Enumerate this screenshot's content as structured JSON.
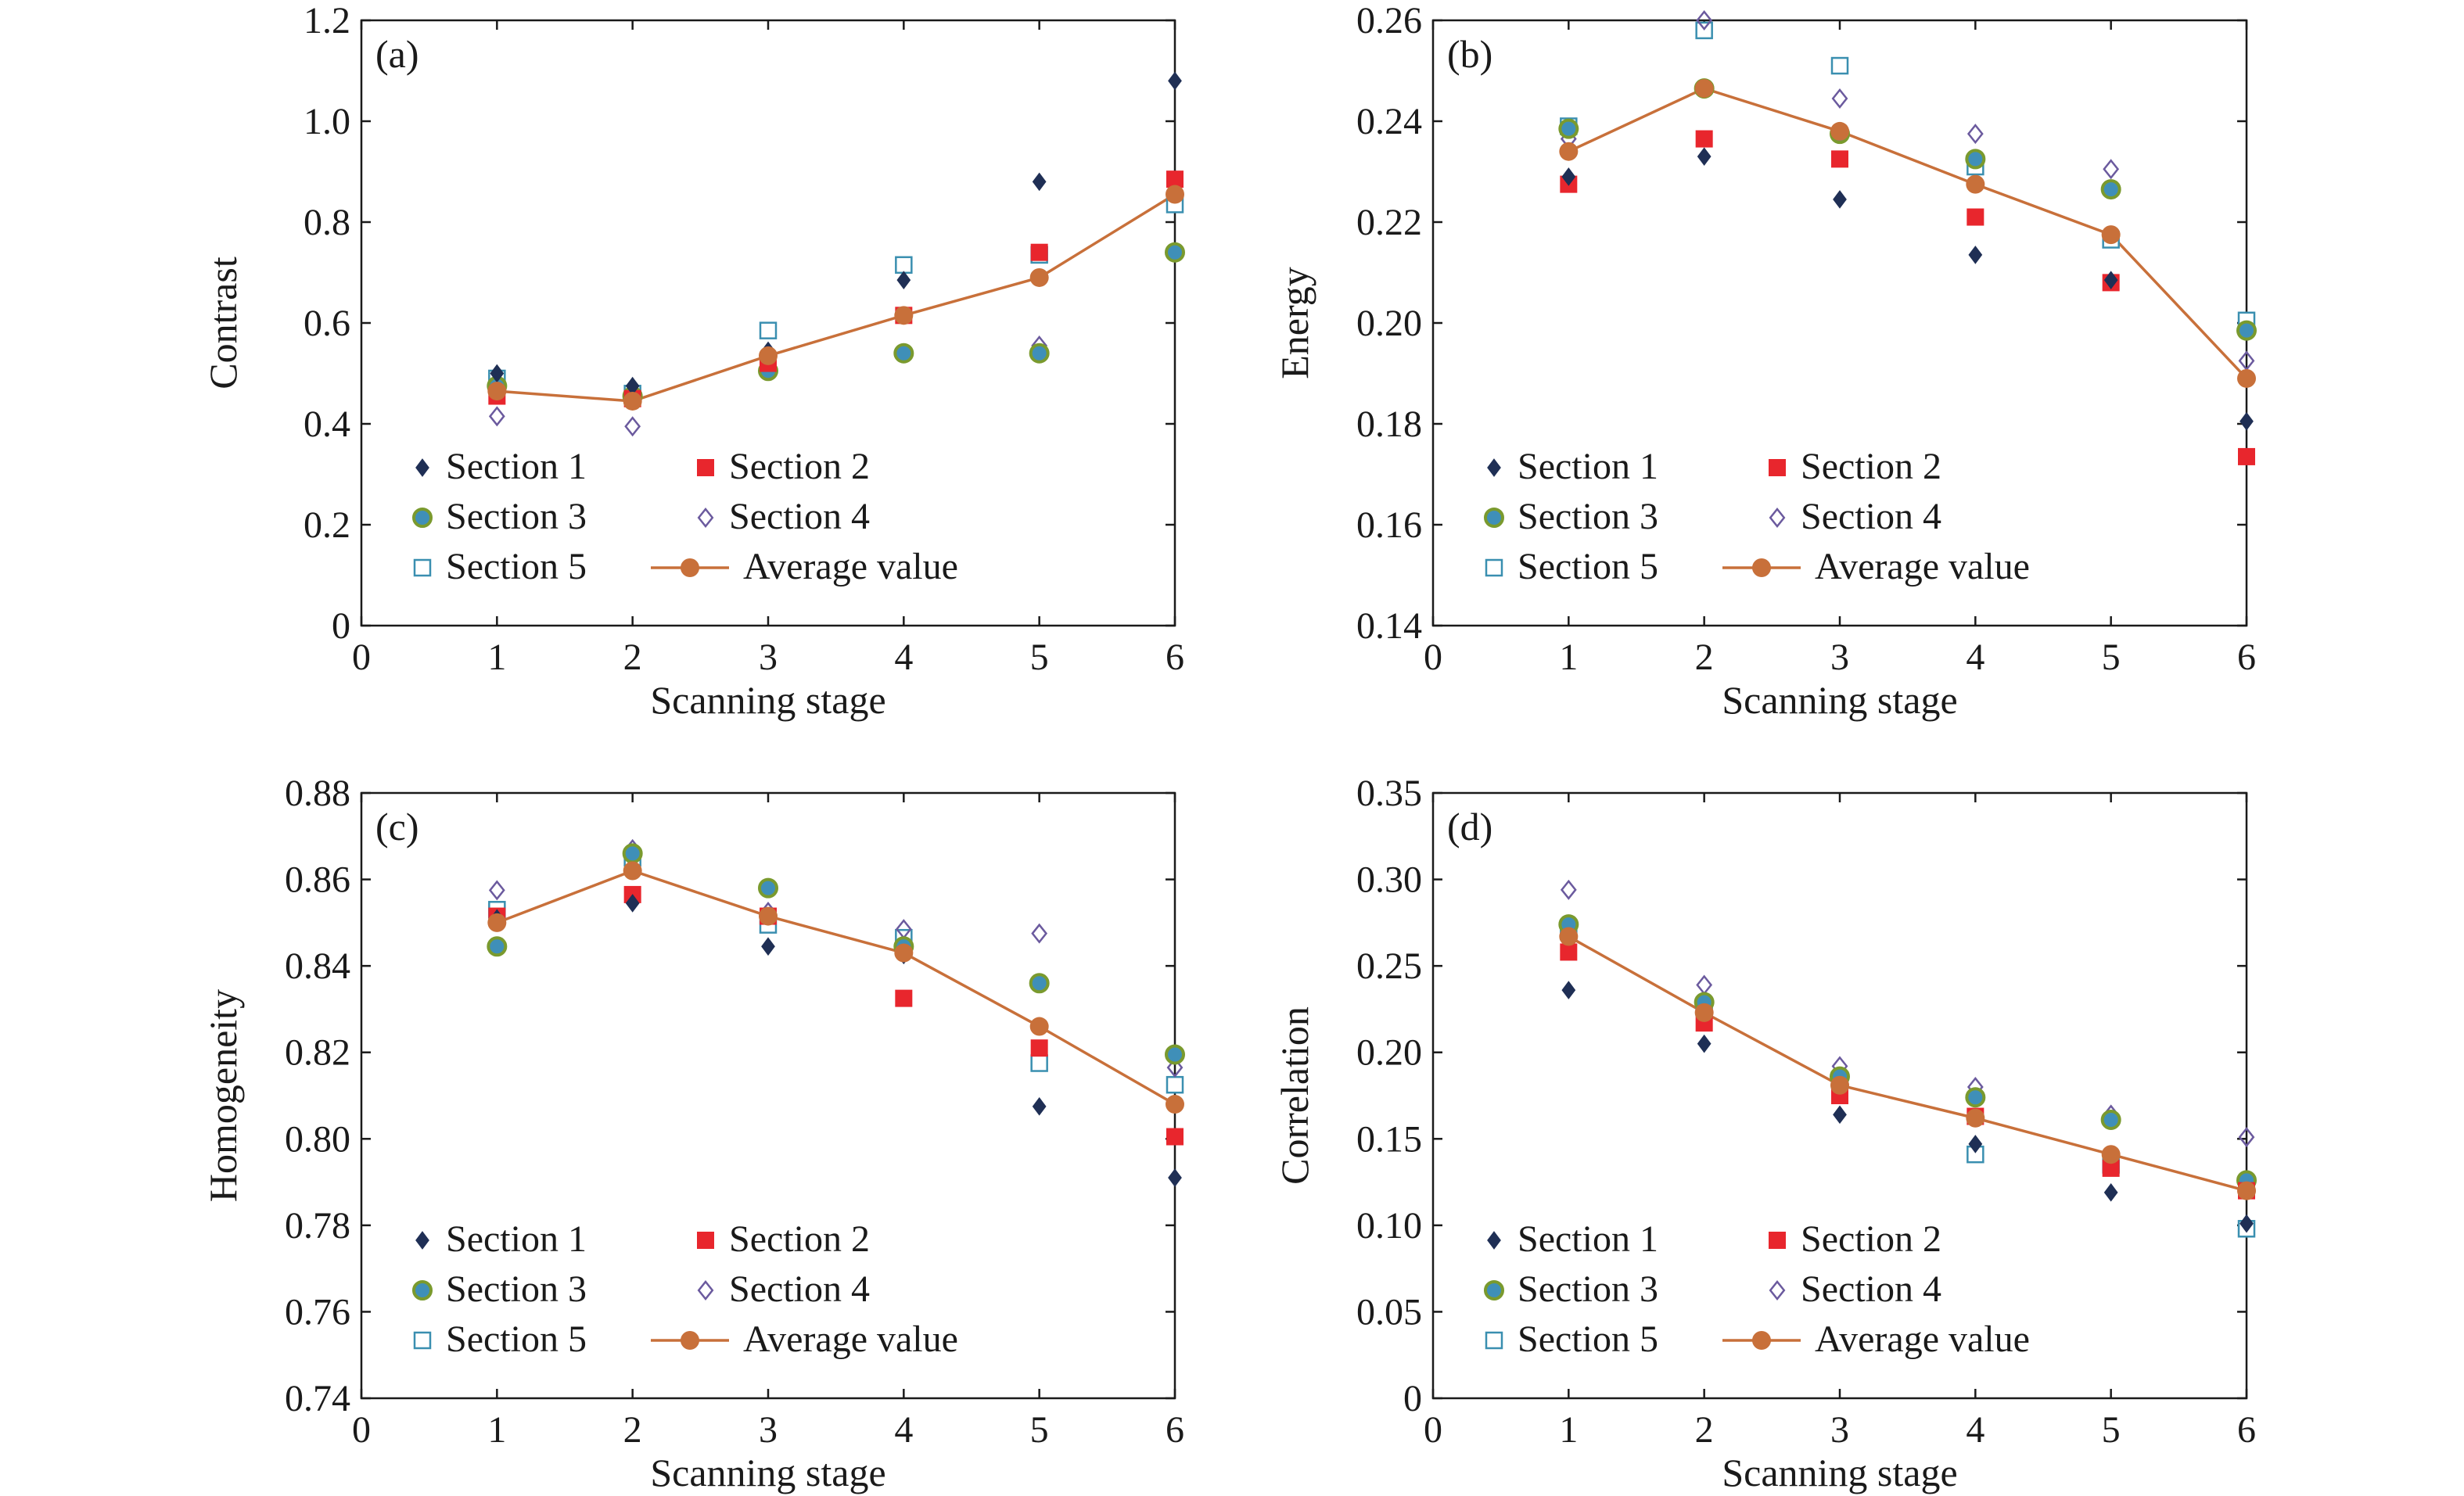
{
  "colors": {
    "section1": "#1f2f55",
    "section2": "#e8262d",
    "section3_fill": "#3f8fb8",
    "section3_edge": "#7a9a2e",
    "section4": "#6b5a9e",
    "section5": "#3a8fb0",
    "average": "#c8703a",
    "axis": "#1a1a1a"
  },
  "legend": {
    "section1": "Section 1",
    "section2": "Section 2",
    "section3": "Section 3",
    "section4": "Section 4",
    "section5": "Section 5",
    "average": "Average value"
  },
  "chart_data": [
    {
      "type": "scatter",
      "panel_label": "(a)",
      "xlabel": "Scanning stage",
      "ylabel": "Contrast",
      "xlim": [
        0,
        6
      ],
      "ylim": [
        0,
        1.2
      ],
      "xticks": [
        0,
        1,
        2,
        3,
        4,
        5,
        6
      ],
      "yticks": [
        0,
        0.2,
        0.4,
        0.6,
        0.8,
        1.0,
        1.2
      ],
      "ytick_labels": [
        "0",
        "0.2",
        "0.4",
        "0.6",
        "0.8",
        "1.0",
        "1.2"
      ],
      "legend_placement": "bottom-left",
      "x": [
        1,
        2,
        3,
        4,
        5,
        6
      ],
      "series": [
        {
          "name": "Section 1",
          "values": [
            0.5,
            0.475,
            0.545,
            0.685,
            0.88,
            1.08
          ]
        },
        {
          "name": "Section 2",
          "values": [
            0.455,
            0.45,
            0.52,
            0.615,
            0.74,
            0.885
          ]
        },
        {
          "name": "Section 3",
          "values": [
            0.475,
            0.455,
            0.505,
            0.54,
            0.54,
            0.74
          ]
        },
        {
          "name": "Section 4",
          "values": [
            0.415,
            0.395,
            0.53,
            0.54,
            0.555,
            0.74
          ]
        },
        {
          "name": "Section 5",
          "values": [
            0.49,
            0.46,
            0.585,
            0.715,
            0.735,
            0.835
          ]
        },
        {
          "name": "Average value",
          "values": [
            0.465,
            0.445,
            0.535,
            0.615,
            0.69,
            0.855
          ]
        }
      ]
    },
    {
      "type": "scatter",
      "panel_label": "(b)",
      "xlabel": "Scanning stage",
      "ylabel": "Energy",
      "xlim": [
        0,
        6
      ],
      "ylim": [
        0.14,
        0.26
      ],
      "xticks": [
        0,
        1,
        2,
        3,
        4,
        5,
        6
      ],
      "yticks": [
        0.14,
        0.16,
        0.18,
        0.2,
        0.22,
        0.24,
        0.26
      ],
      "ytick_labels": [
        "0.14",
        "0.16",
        "0.18",
        "0.20",
        "0.22",
        "0.24",
        "0.26"
      ],
      "legend_placement": "bottom-left",
      "x": [
        1,
        2,
        3,
        4,
        5,
        6
      ],
      "series": [
        {
          "name": "Section 1",
          "values": [
            0.229,
            0.233,
            0.2245,
            0.2135,
            0.2085,
            0.1805
          ]
        },
        {
          "name": "Section 2",
          "values": [
            0.2275,
            0.2365,
            0.2325,
            0.221,
            0.208,
            0.1735
          ]
        },
        {
          "name": "Section 3",
          "values": [
            0.2385,
            0.2465,
            0.2375,
            0.2325,
            0.2265,
            0.1985
          ]
        },
        {
          "name": "Section 4",
          "values": [
            0.2365,
            0.26,
            0.2445,
            0.2375,
            0.2305,
            0.1925
          ]
        },
        {
          "name": "Section 5",
          "values": [
            0.239,
            0.258,
            0.251,
            0.231,
            0.2165,
            0.2005
          ]
        },
        {
          "name": "Average value",
          "values": [
            0.234,
            0.2465,
            0.238,
            0.2275,
            0.2175,
            0.189
          ]
        }
      ]
    },
    {
      "type": "scatter",
      "panel_label": "(c)",
      "xlabel": "Scanning stage",
      "ylabel": "Homogeneity",
      "xlim": [
        0,
        6
      ],
      "ylim": [
        0.74,
        0.88
      ],
      "xticks": [
        0,
        1,
        2,
        3,
        4,
        5,
        6
      ],
      "yticks": [
        0.74,
        0.76,
        0.78,
        0.8,
        0.82,
        0.84,
        0.86,
        0.88
      ],
      "ytick_labels": [
        "0.74",
        "0.76",
        "0.78",
        "0.80",
        "0.82",
        "0.84",
        "0.86",
        "0.88"
      ],
      "legend_placement": "bottom-left",
      "x": [
        1,
        2,
        3,
        4,
        5,
        6
      ],
      "series": [
        {
          "name": "Section 1",
          "values": [
            0.851,
            0.8545,
            0.8445,
            0.8425,
            0.8075,
            0.791
          ]
        },
        {
          "name": "Section 2",
          "values": [
            0.8515,
            0.8565,
            0.8515,
            0.8325,
            0.821,
            0.8005
          ]
        },
        {
          "name": "Section 3",
          "values": [
            0.8445,
            0.866,
            0.858,
            0.8445,
            0.836,
            0.8195
          ]
        },
        {
          "name": "Section 4",
          "values": [
            0.8575,
            0.867,
            0.8525,
            0.8485,
            0.8475,
            0.8165
          ]
        },
        {
          "name": "Section 5",
          "values": [
            0.853,
            0.865,
            0.8495,
            0.8465,
            0.8175,
            0.8125
          ]
        },
        {
          "name": "Average value",
          "values": [
            0.85,
            0.862,
            0.8515,
            0.843,
            0.826,
            0.808
          ]
        }
      ]
    },
    {
      "type": "scatter",
      "panel_label": "(d)",
      "xlabel": "Scanning stage",
      "ylabel": "Correlation",
      "xlim": [
        0,
        6
      ],
      "ylim": [
        0,
        0.35
      ],
      "xticks": [
        0,
        1,
        2,
        3,
        4,
        5,
        6
      ],
      "yticks": [
        0,
        0.05,
        0.1,
        0.15,
        0.2,
        0.25,
        0.3,
        0.35
      ],
      "ytick_labels": [
        "0",
        "0.05",
        "0.10",
        "0.15",
        "0.20",
        "0.25",
        "0.30",
        "0.35"
      ],
      "legend_placement": "bottom-left",
      "x": [
        1,
        2,
        3,
        4,
        5,
        6
      ],
      "series": [
        {
          "name": "Section 1",
          "values": [
            0.236,
            0.205,
            0.164,
            0.147,
            0.119,
            0.101
          ]
        },
        {
          "name": "Section 2",
          "values": [
            0.258,
            0.217,
            0.175,
            0.163,
            0.133,
            0.12
          ]
        },
        {
          "name": "Section 3",
          "values": [
            0.274,
            0.229,
            0.186,
            0.174,
            0.161,
            0.126
          ]
        },
        {
          "name": "Section 4",
          "values": [
            0.294,
            0.239,
            0.192,
            0.18,
            0.164,
            0.151
          ]
        },
        {
          "name": "Section 5",
          "values": [
            0.27,
            0.226,
            0.184,
            0.141,
            0.135,
            0.098
          ]
        },
        {
          "name": "Average value",
          "values": [
            0.267,
            0.223,
            0.181,
            0.162,
            0.141,
            0.12
          ]
        }
      ]
    }
  ]
}
